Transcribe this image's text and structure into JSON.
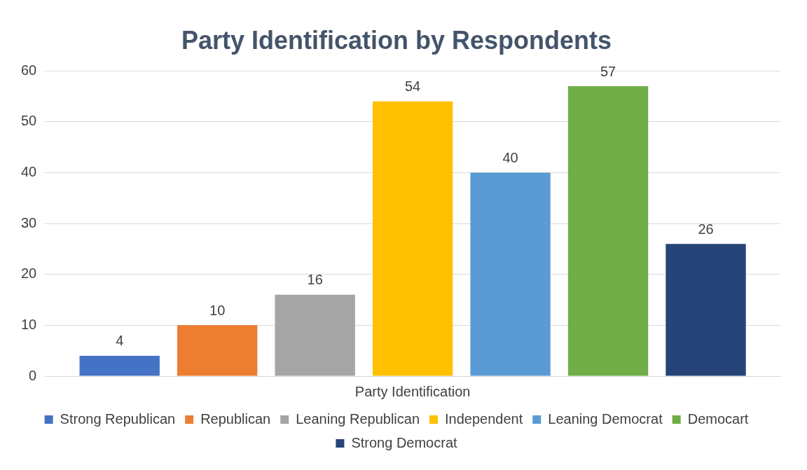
{
  "chart_data": {
    "type": "bar",
    "title": "Party Identification by Respondents",
    "categories": [
      "Party Identification"
    ],
    "series": [
      {
        "name": "Strong Republican",
        "color": "#4472c4",
        "values": [
          4
        ]
      },
      {
        "name": "Republican",
        "color": "#ed7d31",
        "values": [
          10
        ]
      },
      {
        "name": "Leaning Republican",
        "color": "#a5a5a5",
        "values": [
          16
        ]
      },
      {
        "name": "Independent",
        "color": "#ffc000",
        "values": [
          54
        ]
      },
      {
        "name": "Leaning Democrat",
        "color": "#5b9bd5",
        "values": [
          40
        ]
      },
      {
        "name": "Democart",
        "color": "#70ad47",
        "values": [
          57
        ]
      },
      {
        "name": "Strong Democrat",
        "color": "#264478",
        "values": [
          26
        ]
      }
    ],
    "ylim": [
      0,
      60
    ],
    "yticks": [
      0,
      10,
      20,
      30,
      40,
      50,
      60
    ],
    "grid": "y",
    "legend": "bottom",
    "data_labels": true
  }
}
